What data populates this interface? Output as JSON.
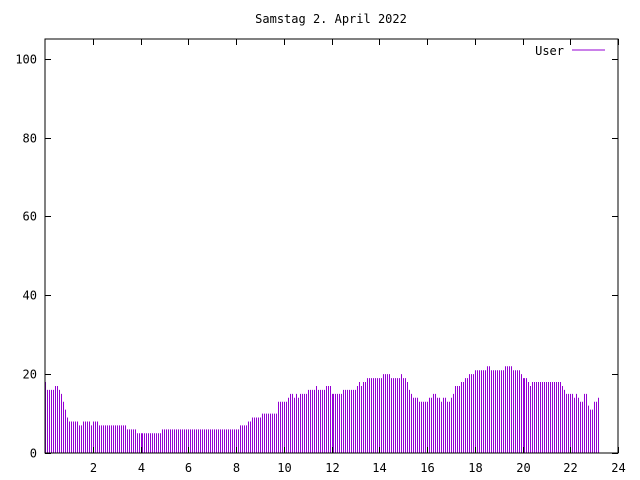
{
  "chart_data": {
    "type": "bar",
    "title": "Samstag 2. April 2022",
    "xlabel": "",
    "ylabel": "",
    "xlim": [
      0,
      24
    ],
    "ylim": [
      0,
      105
    ],
    "x_ticks": [
      2,
      4,
      6,
      8,
      10,
      12,
      14,
      16,
      18,
      20,
      22,
      24
    ],
    "y_ticks": [
      0,
      20,
      40,
      60,
      80,
      100
    ],
    "grid": false,
    "legend_position": "top-right",
    "series": [
      {
        "name": "User",
        "color": "#9400d3",
        "interval_minutes": 5,
        "values": [
          18,
          16,
          16,
          16,
          16,
          17,
          17,
          16,
          15,
          13,
          11,
          9,
          8,
          8,
          8,
          8,
          8,
          7,
          7,
          8,
          8,
          8,
          8,
          7,
          8,
          8,
          8,
          7,
          7,
          7,
          7,
          7,
          7,
          7,
          7,
          7,
          7,
          7,
          7,
          7,
          7,
          6,
          6,
          6,
          6,
          6,
          5,
          5,
          5,
          5,
          5,
          5,
          5,
          5,
          5,
          5,
          5,
          5,
          5,
          6,
          6,
          6,
          6,
          6,
          6,
          6,
          6,
          6,
          6,
          6,
          6,
          6,
          6,
          6,
          6,
          6,
          6,
          6,
          6,
          6,
          6,
          6,
          6,
          6,
          6,
          6,
          6,
          6,
          6,
          6,
          6,
          6,
          6,
          6,
          6,
          6,
          6,
          6,
          7,
          7,
          7,
          7,
          8,
          8,
          9,
          9,
          9,
          9,
          9,
          10,
          10,
          10,
          10,
          10,
          10,
          10,
          10,
          13,
          13,
          13,
          13,
          13,
          14,
          15,
          15,
          14,
          15,
          14,
          15,
          15,
          15,
          15,
          16,
          16,
          16,
          16,
          17,
          16,
          16,
          16,
          16,
          17,
          17,
          17,
          15,
          15,
          15,
          15,
          15,
          15,
          16,
          16,
          16,
          16,
          16,
          16,
          16,
          17,
          18,
          17,
          18,
          18,
          19,
          19,
          19,
          19,
          19,
          19,
          19,
          19,
          20,
          20,
          20,
          20,
          19,
          19,
          19,
          19,
          19,
          20,
          19,
          19,
          18,
          16,
          15,
          14,
          14,
          14,
          13,
          13,
          13,
          13,
          13,
          14,
          14,
          15,
          15,
          14,
          14,
          13,
          14,
          14,
          13,
          13,
          14,
          15,
          17,
          17,
          17,
          18,
          18,
          19,
          19,
          20,
          20,
          20,
          21,
          21,
          21,
          21,
          21,
          21,
          22,
          22,
          21,
          21,
          21,
          21,
          21,
          21,
          21,
          22,
          22,
          22,
          22,
          21,
          21,
          21,
          21,
          20,
          19,
          19,
          19,
          18,
          17,
          18,
          18,
          18,
          18,
          18,
          18,
          18,
          18,
          18,
          18,
          18,
          18,
          18,
          18,
          18,
          17,
          16,
          15,
          15,
          15,
          15,
          14,
          15,
          14,
          13,
          13,
          15,
          15,
          12,
          11,
          11,
          13,
          13,
          14
        ]
      }
    ]
  }
}
